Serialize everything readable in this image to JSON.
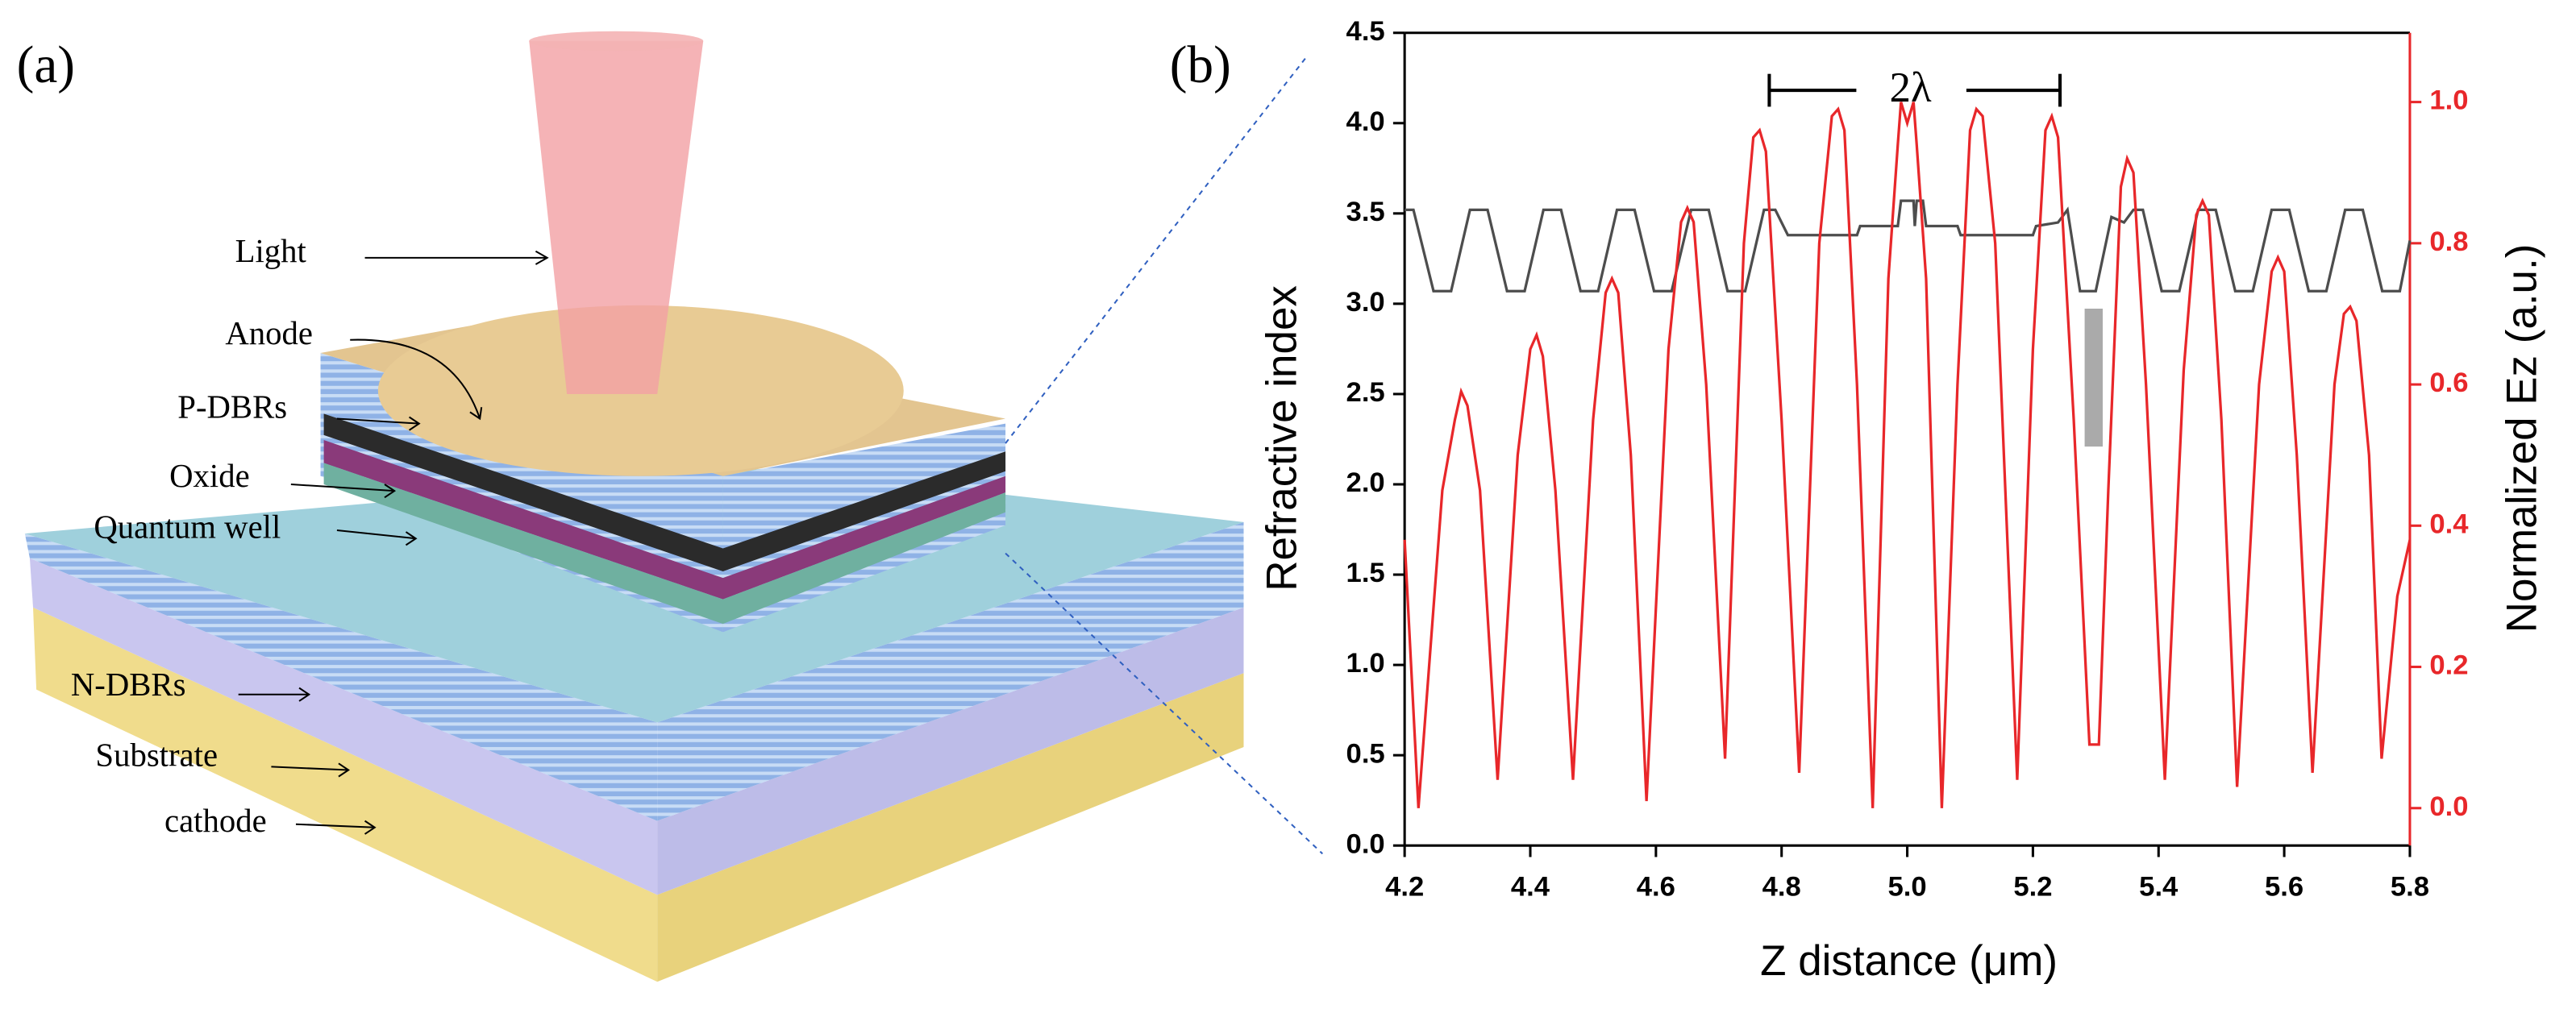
{
  "diagram": {
    "panel_label": "(a)",
    "labels": [
      "Light",
      "Anode",
      "P-DBRs",
      "Oxide",
      "Quantum well",
      "N-DBRs",
      "Substrate",
      "cathode"
    ]
  },
  "chart_data": {
    "type": "line",
    "panel_label": "(b)",
    "annotation": "2λ",
    "xlabel": "Z distance (μm)",
    "ylabel": "Refractive index",
    "y2label": "Normalized Ez (a.u.)",
    "xlim": [
      4.2,
      5.8
    ],
    "xticks": [
      4.2,
      4.4,
      4.6,
      4.8,
      {
        "value": 5,
        "label": "5.0"
      },
      5.2,
      5.4,
      5.6,
      5.8
    ],
    "ylim": [
      0,
      4.5
    ],
    "yticks": [
      {
        "value": 0,
        "label": "0.0"
      },
      0.5,
      {
        "value": 1,
        "label": "1.0"
      },
      1.5,
      {
        "value": 2,
        "label": "2.0"
      },
      2.5,
      {
        "value": 3,
        "label": "3.0"
      },
      3.5,
      {
        "value": 4,
        "label": "4.0"
      },
      4.5
    ],
    "y2lim": [
      -0.053,
      1.098
    ],
    "y2ticks": [
      {
        "value": 0,
        "label": "0.0"
      },
      0.2,
      0.4,
      0.6,
      0.8,
      {
        "value": 1,
        "label": "1.0"
      }
    ],
    "series": [
      {
        "color": "#4d4d4d",
        "x": [
          4.2,
          4.214,
          4.246,
          4.274,
          4.304,
          4.332,
          4.363,
          4.391,
          4.421,
          4.449,
          4.48,
          4.508,
          4.538,
          4.566,
          4.597,
          4.625,
          4.656,
          4.684,
          4.714,
          4.742,
          4.772,
          4.79,
          4.81,
          4.92,
          4.925,
          4.985,
          4.99,
          5.01,
          5.012,
          5.015,
          5.025,
          5.03,
          5.08,
          5.085,
          5.2,
          5.205,
          5.24,
          5.255,
          5.275,
          5.3,
          5.325,
          5.345,
          5.36,
          5.375,
          5.405,
          5.433,
          5.463,
          5.491,
          5.522,
          5.55,
          5.58,
          5.608,
          5.639,
          5.667,
          5.697,
          5.725,
          5.756,
          5.784,
          5.8
        ],
        "values": [
          3.52,
          3.52,
          3.07,
          3.07,
          3.52,
          3.52,
          3.07,
          3.07,
          3.52,
          3.52,
          3.07,
          3.07,
          3.52,
          3.52,
          3.07,
          3.07,
          3.52,
          3.52,
          3.07,
          3.07,
          3.52,
          3.52,
          3.38,
          3.38,
          3.43,
          3.43,
          3.57,
          3.57,
          3.43,
          3.57,
          3.57,
          3.43,
          3.43,
          3.38,
          3.38,
          3.43,
          3.45,
          3.52,
          3.07,
          3.07,
          3.48,
          3.45,
          3.52,
          3.52,
          3.07,
          3.07,
          3.52,
          3.52,
          3.07,
          3.07,
          3.52,
          3.52,
          3.07,
          3.07,
          3.52,
          3.52,
          3.07,
          3.07,
          3.35
        ]
      },
      {
        "color": "#e8272a",
        "axis": "y2",
        "x": [
          4.2,
          4.222,
          4.26,
          4.28,
          4.29,
          4.3,
          4.32,
          4.348,
          4.38,
          4.4,
          4.41,
          4.42,
          4.44,
          4.468,
          4.5,
          4.52,
          4.53,
          4.54,
          4.56,
          4.585,
          4.62,
          4.64,
          4.65,
          4.66,
          4.68,
          4.71,
          4.74,
          4.755,
          4.765,
          4.775,
          4.8,
          4.828,
          4.86,
          4.88,
          4.89,
          4.9,
          4.92,
          4.945,
          4.97,
          4.985,
          4.99,
          5.0,
          5.01,
          5.015,
          5.03,
          5.055,
          5.08,
          5.1,
          5.11,
          5.12,
          5.14,
          5.175,
          5.2,
          5.22,
          5.23,
          5.24,
          5.265,
          5.29,
          5.305,
          5.32,
          5.34,
          5.35,
          5.36,
          5.38,
          5.41,
          5.44,
          5.46,
          5.47,
          5.48,
          5.5,
          5.525,
          5.56,
          5.58,
          5.59,
          5.6,
          5.62,
          5.645,
          5.68,
          5.695,
          5.705,
          5.715,
          5.735,
          5.755,
          5.78,
          5.8
        ],
        "values": [
          0.38,
          0.0,
          0.45,
          0.55,
          0.59,
          0.57,
          0.45,
          0.04,
          0.5,
          0.65,
          0.67,
          0.64,
          0.45,
          0.04,
          0.55,
          0.73,
          0.75,
          0.73,
          0.5,
          0.01,
          0.65,
          0.83,
          0.85,
          0.83,
          0.6,
          0.07,
          0.8,
          0.95,
          0.96,
          0.93,
          0.55,
          0.05,
          0.8,
          0.98,
          0.99,
          0.96,
          0.6,
          0.0,
          0.75,
          0.94,
          1.0,
          0.97,
          1.0,
          0.94,
          0.75,
          0.0,
          0.6,
          0.96,
          0.99,
          0.98,
          0.8,
          0.04,
          0.65,
          0.96,
          0.98,
          0.95,
          0.55,
          0.09,
          0.09,
          0.45,
          0.88,
          0.92,
          0.9,
          0.6,
          0.04,
          0.62,
          0.84,
          0.86,
          0.84,
          0.55,
          0.03,
          0.6,
          0.76,
          0.78,
          0.76,
          0.5,
          0.05,
          0.6,
          0.7,
          0.71,
          0.69,
          0.5,
          0.07,
          0.3,
          0.38
        ]
      }
    ]
  }
}
